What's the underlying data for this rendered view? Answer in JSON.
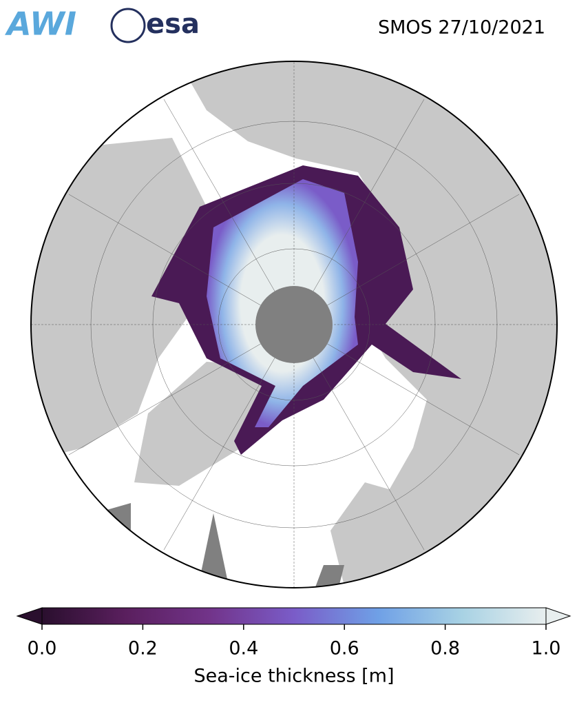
{
  "header": {
    "logos": [
      "AWI",
      "esa"
    ],
    "title": "SMOS 27/10/2021"
  },
  "colorbar": {
    "label": "Sea-ice thickness [m]",
    "lim": [
      0,
      1
    ],
    "ticks": [
      {
        "value": 0,
        "label": "0.0"
      },
      {
        "value": 0.2,
        "label": "0.2"
      },
      {
        "value": 0.4,
        "label": "0.4"
      },
      {
        "value": 0.6,
        "label": "0.6"
      },
      {
        "value": 0.8,
        "label": "0.8"
      },
      {
        "value": 1,
        "label": "1.0"
      }
    ],
    "colors": [
      "#2a0f2e",
      "#5a1f5e",
      "#72348a",
      "#7a5cc8",
      "#6fa0e6",
      "#a8d2e4",
      "#e8eeee"
    ]
  }
}
